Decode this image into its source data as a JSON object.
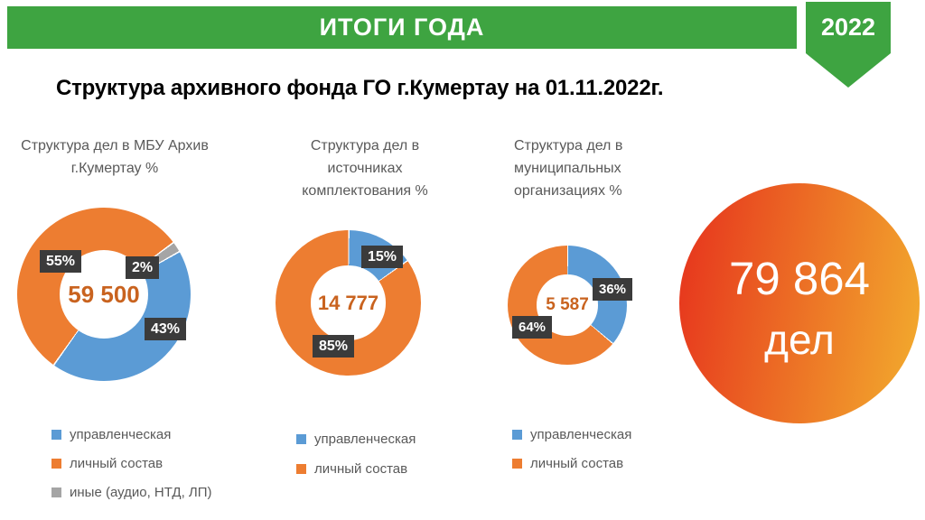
{
  "header": {
    "title": "ИТОГИ ГОДА",
    "year": "2022"
  },
  "page_title": "Структура архивного фонда ГО г.Кумертау  на 01.11.2022г.",
  "colors": {
    "green": "#3ea441",
    "blue": "#5b9bd5",
    "orange": "#ed7d31",
    "gray": "#a5a5a5",
    "dark-label": "#3b3b3b",
    "center-text": "#c9631f",
    "chart-title": "#595959",
    "bubble-red": "#e73b1e",
    "bubble-yellow": "#f2a92d"
  },
  "total": {
    "value": "79 864",
    "unit": "дел"
  },
  "chart_data": [
    {
      "type": "donut",
      "title": "Структура дел в МБУ Архив г.Кумертау %",
      "center_value": "59 500",
      "rotation_deg": 60,
      "segments": [
        {
          "label": "управленческая",
          "value_pct": 43,
          "data_label": "43%",
          "color": "#5b9bd5"
        },
        {
          "label": "личный состав",
          "value_pct": 55,
          "data_label": "55%",
          "color": "#ed7d31"
        },
        {
          "label": "иные (аудио, НТД, ЛП)",
          "value_pct": 2,
          "data_label": "2%",
          "color": "#a5a5a5"
        }
      ],
      "legend_position": "bottom"
    },
    {
      "type": "donut",
      "title": "Структура дел в источниках комплектования %",
      "center_value": "14 777",
      "rotation_deg": 0,
      "segments": [
        {
          "label": "управленческая",
          "value_pct": 15,
          "data_label": "15%",
          "color": "#5b9bd5"
        },
        {
          "label": "личный состав",
          "value_pct": 85,
          "data_label": "85%",
          "color": "#ed7d31"
        }
      ],
      "legend_position": "bottom"
    },
    {
      "type": "donut",
      "title": "Структура дел в муниципальных организациях %",
      "center_value": "5 587",
      "rotation_deg": 0,
      "segments": [
        {
          "label": "управленческая",
          "value_pct": 36,
          "data_label": "36%",
          "color": "#5b9bd5"
        },
        {
          "label": "личный состав",
          "value_pct": 64,
          "data_label": "64%",
          "color": "#ed7d31"
        }
      ],
      "legend_position": "bottom"
    }
  ]
}
